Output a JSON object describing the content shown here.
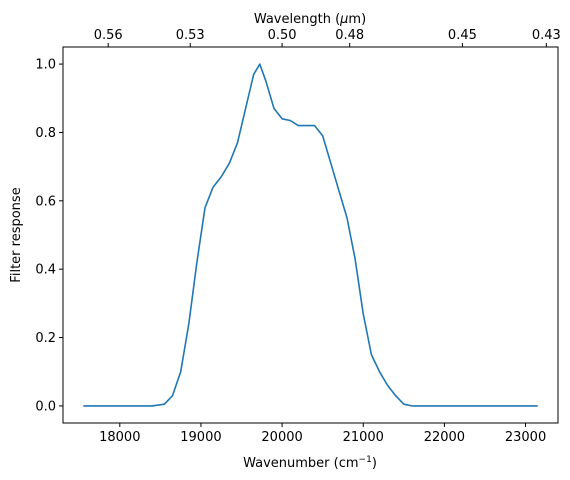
{
  "chart_data": {
    "type": "line",
    "xlabel": "Wavenumber (cm",
    "xlabel_sup": "−1",
    "xlabel_close": ")",
    "ylabel": "Filter response",
    "top_xlabel": "Wavelength (",
    "top_xlabel_mu": "μ",
    "top_xlabel_close": "m)",
    "x_ticks": [
      "18000",
      "19000",
      "20000",
      "21000",
      "22000",
      "23000"
    ],
    "y_ticks": [
      "0.0",
      "0.2",
      "0.4",
      "0.6",
      "0.8",
      "1.0"
    ],
    "top_ticks": [
      {
        "label": "0.56",
        "wavenumber": 17857
      },
      {
        "label": "0.53",
        "wavenumber": 18868
      },
      {
        "label": "0.50",
        "wavenumber": 20000
      },
      {
        "label": "0.48",
        "wavenumber": 20833
      },
      {
        "label": "0.45",
        "wavenumber": 22222
      },
      {
        "label": "0.43",
        "wavenumber": 23256
      }
    ],
    "xlim": [
      17300,
      23400
    ],
    "ylim": [
      -0.05,
      1.05
    ],
    "grid": false,
    "series": [
      {
        "color": "#1f77b4",
        "points": [
          [
            17550,
            0.0
          ],
          [
            18000,
            0.0
          ],
          [
            18400,
            0.0
          ],
          [
            18550,
            0.005
          ],
          [
            18650,
            0.03
          ],
          [
            18750,
            0.1
          ],
          [
            18850,
            0.24
          ],
          [
            18950,
            0.42
          ],
          [
            19050,
            0.58
          ],
          [
            19150,
            0.64
          ],
          [
            19250,
            0.67
          ],
          [
            19350,
            0.71
          ],
          [
            19450,
            0.77
          ],
          [
            19550,
            0.87
          ],
          [
            19650,
            0.97
          ],
          [
            19725,
            1.0
          ],
          [
            19800,
            0.95
          ],
          [
            19900,
            0.87
          ],
          [
            20000,
            0.84
          ],
          [
            20100,
            0.835
          ],
          [
            20200,
            0.82
          ],
          [
            20300,
            0.82
          ],
          [
            20400,
            0.82
          ],
          [
            20500,
            0.79
          ],
          [
            20600,
            0.71
          ],
          [
            20700,
            0.63
          ],
          [
            20800,
            0.55
          ],
          [
            20900,
            0.43
          ],
          [
            21000,
            0.27
          ],
          [
            21100,
            0.15
          ],
          [
            21200,
            0.1
          ],
          [
            21300,
            0.06
          ],
          [
            21400,
            0.03
          ],
          [
            21500,
            0.005
          ],
          [
            21600,
            0.0
          ],
          [
            22000,
            0.0
          ],
          [
            23150,
            0.0
          ]
        ]
      }
    ]
  }
}
